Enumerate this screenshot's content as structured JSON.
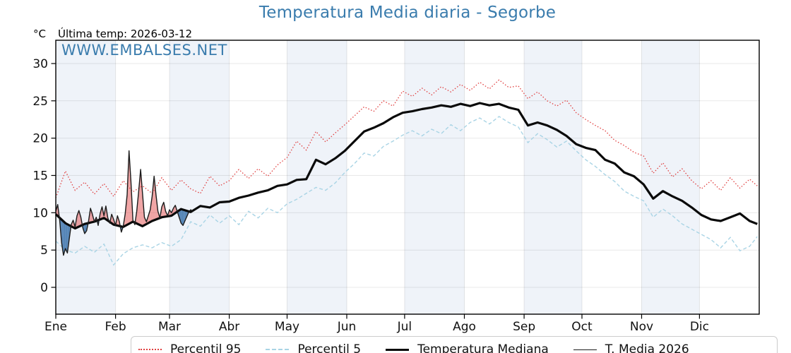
{
  "header": {
    "title": "Temperatura Media diaria - Segorbe",
    "unit": "°C",
    "last_temp_label": "Última temp: 2026-03-12",
    "watermark": "WWW.EMBALSES.NET"
  },
  "colors": {
    "title_blue": "#3a7cad",
    "p95_red": "#e04040",
    "p5_blue": "#a9d4e5",
    "median_black": "#0a0a0a",
    "t2026_dark": "#1c1c1c",
    "fill_above": "rgba(224,64,64,0.48)",
    "fill_below": "rgba(77,127,179,0.95)",
    "band": "#eff3f9",
    "grid": "rgba(0,0,0,0.09)",
    "axis": "#000000"
  },
  "legend": {
    "items": [
      {
        "label": "Percentil 95",
        "style": "dotted"
      },
      {
        "label": "Percentil 5",
        "style": "dashed"
      },
      {
        "label": "Temperatura Mediana",
        "style": "thick"
      },
      {
        "label": "T. Media 2026",
        "style": "thin"
      }
    ]
  },
  "chart_data": {
    "type": "line",
    "title": "Temperatura Media diaria - Segorbe",
    "ylabel": "°C",
    "last_date_note": "Última temp: 2026-03-12",
    "months": [
      "Ene",
      "Feb",
      "Mar",
      "Abr",
      "May",
      "Jun",
      "Jul",
      "Ago",
      "Sep",
      "Oct",
      "Nov",
      "Dic"
    ],
    "month_start_days": [
      0,
      31,
      59,
      90,
      120,
      151,
      181,
      212,
      243,
      273,
      304,
      334,
      365
    ],
    "yticks": [
      0,
      5,
      10,
      15,
      20,
      25,
      30
    ],
    "ylim": [
      -3.6,
      33.1
    ],
    "xlim_days": [
      0,
      365
    ],
    "grid": true,
    "legend_position": "bottom",
    "day_step": 5,
    "series": [
      {
        "name": "Percentil 95",
        "style": "dotted",
        "day_step": 5,
        "values": [
          12.0,
          15.6,
          13.0,
          14.1,
          12.5,
          13.9,
          12.2,
          14.3,
          12.8,
          13.6,
          12.6,
          14.7,
          13.0,
          14.4,
          13.2,
          12.6,
          14.9,
          13.6,
          14.3,
          15.8,
          14.6,
          15.9,
          14.9,
          16.4,
          17.4,
          19.6,
          18.4,
          20.9,
          19.5,
          20.7,
          21.8,
          23.0,
          24.2,
          23.6,
          25.0,
          24.3,
          26.3,
          25.6,
          26.7,
          25.8,
          26.9,
          26.2,
          27.2,
          26.4,
          27.5,
          26.6,
          27.8,
          26.8,
          27.0,
          25.3,
          26.2,
          25.0,
          24.3,
          25.1,
          23.4,
          22.5,
          21.7,
          21.0,
          19.7,
          19.0,
          18.1,
          17.6,
          15.3,
          16.7,
          14.8,
          15.9,
          14.3,
          13.2,
          14.3,
          13.0,
          14.7,
          13.3,
          14.5,
          13.6
        ]
      },
      {
        "name": "Percentil 5",
        "style": "dashed",
        "day_step": 5,
        "values": [
          6.2,
          5.0,
          4.6,
          5.5,
          4.7,
          5.8,
          3.0,
          4.5,
          5.3,
          5.7,
          5.3,
          6.0,
          5.5,
          6.4,
          8.8,
          8.2,
          9.7,
          8.6,
          9.6,
          8.4,
          10.2,
          9.3,
          10.6,
          10.0,
          11.2,
          11.8,
          12.6,
          13.4,
          13.0,
          14.0,
          15.4,
          16.6,
          18.0,
          17.6,
          18.9,
          19.6,
          20.4,
          21.0,
          20.3,
          21.2,
          20.6,
          21.8,
          21.0,
          22.1,
          22.7,
          21.9,
          22.9,
          22.1,
          21.5,
          19.4,
          20.6,
          19.8,
          18.8,
          19.6,
          18.3,
          17.1,
          16.2,
          15.1,
          14.2,
          12.9,
          12.2,
          11.6,
          9.4,
          10.5,
          9.6,
          8.5,
          7.8,
          7.1,
          6.4,
          5.3,
          6.7,
          4.9,
          5.5,
          6.8
        ]
      },
      {
        "name": "Temperatura Mediana",
        "style": "solid-thick",
        "day_step": 5,
        "values": [
          9.8,
          8.6,
          7.9,
          8.5,
          8.8,
          9.3,
          8.4,
          8.1,
          8.8,
          8.2,
          8.9,
          9.4,
          9.6,
          10.5,
          10.1,
          10.9,
          10.7,
          11.4,
          11.5,
          12.0,
          12.3,
          12.7,
          13.0,
          13.6,
          13.8,
          14.4,
          14.5,
          17.1,
          16.5,
          17.3,
          18.3,
          19.6,
          20.9,
          21.4,
          22.0,
          22.8,
          23.4,
          23.6,
          23.9,
          24.1,
          24.4,
          24.2,
          24.6,
          24.3,
          24.7,
          24.4,
          24.6,
          24.1,
          23.8,
          21.7,
          22.1,
          21.7,
          21.1,
          20.3,
          19.2,
          18.7,
          18.4,
          17.1,
          16.6,
          15.4,
          14.9,
          13.8,
          11.9,
          12.9,
          12.2,
          11.6,
          10.7,
          9.7,
          9.1,
          8.9,
          9.4,
          9.9,
          8.9,
          8.5
        ]
      },
      {
        "name": "T. Media 2026",
        "style": "solid-thin",
        "start_day": 0,
        "daily": true,
        "values": [
          10.2,
          11.1,
          9.0,
          6.0,
          4.3,
          5.2,
          4.6,
          6.5,
          8.4,
          9.0,
          8.1,
          9.6,
          10.3,
          9.4,
          8.0,
          7.2,
          7.6,
          8.9,
          10.6,
          9.8,
          8.8,
          9.4,
          8.3,
          9.9,
          10.8,
          9.6,
          10.9,
          9.3,
          8.6,
          9.8,
          9.1,
          8.3,
          9.6,
          8.8,
          7.4,
          8.2,
          9.8,
          12.4,
          18.3,
          14.2,
          9.0,
          8.4,
          10.2,
          12.8,
          15.8,
          12.6,
          9.4,
          8.8,
          9.6,
          10.4,
          12.2,
          14.9,
          12.4,
          10.2,
          9.3,
          10.8,
          11.4,
          10.2,
          9.6,
          10.4,
          10.0,
          10.6,
          11.0,
          10.2,
          9.4,
          8.6,
          8.3,
          8.9,
          9.5,
          10.1,
          10.4,
          10.2
        ]
      }
    ],
    "fill_between": {
      "above": "T. Media 2026 > Mediana",
      "below": "T. Media 2026 < Mediana"
    }
  }
}
